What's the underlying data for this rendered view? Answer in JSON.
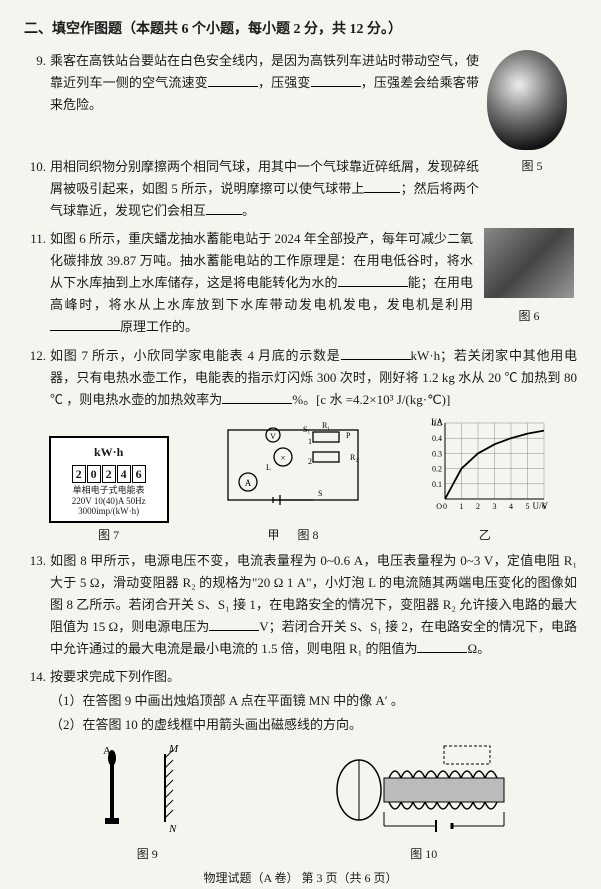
{
  "section": {
    "heading": "二、填空作图题（本题共 6 个小题，每小题 2 分，共 12 分。）"
  },
  "q9": {
    "num": "9.",
    "text_a": "乘客在高铁站台要站在白色安全线内，是因为高铁列车进站时带动空气，使靠近列车一侧的空气流速变",
    "text_b": "，压强变",
    "text_c": "，压强差会给乘客带来危险。"
  },
  "q10": {
    "num": "10.",
    "text_a": "用相同织物分别摩擦两个相同气球，用其中一个气球靠近碎纸屑，发现碎纸屑被吸引起来，如图 5 所示，说明摩擦可以使气球带上",
    "text_b": "；然后将两个气球靠近，发现它们会相互",
    "text_c": "。",
    "fig": "图 5"
  },
  "q11": {
    "num": "11.",
    "text_a": "如图 6 所示，重庆蟠龙抽水蓄能电站于 2024 年全部投产，每年可减少二氧化碳排放 39.87 万吨。抽水蓄能电站的工作原理是：在用电低谷时，将水从下水库抽到上水库储存，这是将电能转化为水的",
    "text_b": "能；在用电高峰时，将水从上水库放到下水库带动发电机发电，发电机是利用",
    "text_c": "原理工作的。",
    "fig": "图 6"
  },
  "q12": {
    "num": "12.",
    "text_a": "如图 7 所示，小欣同学家电能表 4 月底的示数是",
    "text_b": "kW·h；若关闭家中其他用电器，只有电热水壶工作，电能表的指示灯闪烁 300 次时，刚好将 1.2 kg 水从 20 ℃ 加热到 80 ℃ ，则电热水壶的加热效率为",
    "text_c": "%。[c 水 =4.2×10³ J/(kg·℃)]",
    "meter": {
      "unit": "kW·h",
      "digits": [
        "2",
        "0",
        "2",
        "4",
        "6"
      ],
      "line1": "单相电子式电能表",
      "line2": "220V 10(40)A  50Hz",
      "line3": "3000imp/(kW·h)"
    },
    "fig7": "图 7",
    "fig8": "图 8",
    "figY": "乙",
    "figJ": "甲",
    "chart": {
      "type": "line",
      "xlabel": "U/V",
      "ylabel": "I/A",
      "xlim": [
        0,
        6
      ],
      "ylim": [
        0,
        0.5
      ],
      "xticks": [
        0,
        1,
        2,
        3,
        4,
        5,
        6
      ],
      "yticks": [
        0,
        0.1,
        0.2,
        0.3,
        0.4,
        0.5
      ],
      "points": [
        [
          0,
          0
        ],
        [
          1,
          0.2
        ],
        [
          2,
          0.3
        ],
        [
          3,
          0.36
        ],
        [
          4,
          0.4
        ],
        [
          5,
          0.43
        ],
        [
          6,
          0.45
        ]
      ],
      "line_color": "#000000",
      "grid_color": "#888888",
      "bg_color": "#ffffff"
    }
  },
  "q13": {
    "num": "13.",
    "text_a": "如图 8 甲所示，电源电压不变，电流表量程为 0~0.6 A，电压表量程为 0~3 V，定值电阻 R₁ 大于 5 Ω，滑动变阻器 R₂ 的规格为\"20 Ω 1 A\"，小灯泡 L 的电流随其两端电压变化的图像如图 8 乙所示。若闭合开关 S、S₁ 接 1，在电路安全的情况下，变阻器 R₂ 允许接入电路的最大阻值为 15 Ω，则电源电压为",
    "text_b": "V；若闭合开关 S、S₁ 接 2，在电路安全的情况下，电路中允许通过的最大电流是最小电流的 1.5 倍，则电阻 R₁ 的阻值为",
    "text_c": "Ω。"
  },
  "q14": {
    "num": "14.",
    "text": "按要求完成下列作图。",
    "sub1": "（1）在答图 9 中画出烛焰顶部 A 点在平面镜 MN 中的像 A′ 。",
    "sub2": "（2）在答图 10 的虚线框中用箭头画出磁感线的方向。",
    "fig9": "图 9",
    "fig10": "图 10",
    "labelA": "A",
    "labelM": "M",
    "labelN": "N"
  },
  "footer": "物理试题（A 卷）  第 3 页（共 6 页）"
}
